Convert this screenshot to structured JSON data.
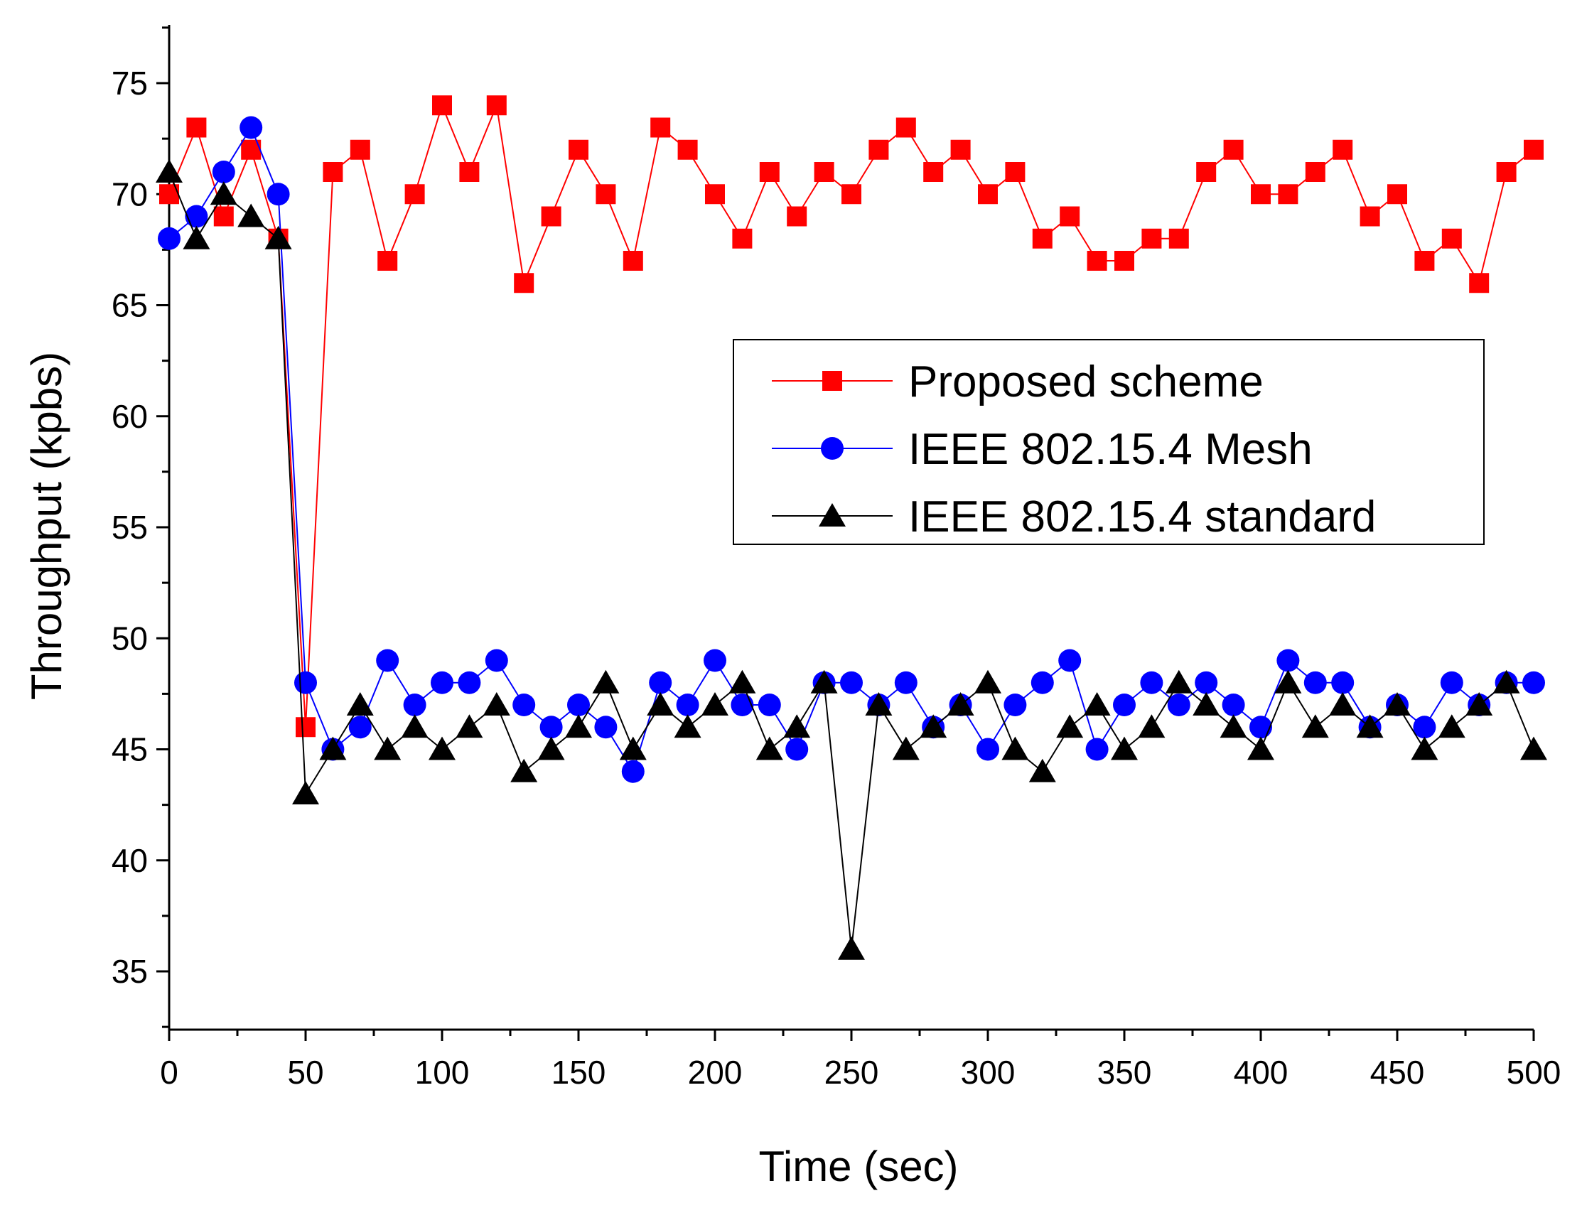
{
  "chart_data": {
    "type": "line",
    "title": "",
    "xlabel": "Time (sec)",
    "ylabel": "Throughput (kpbs)",
    "xlim": [
      0,
      500
    ],
    "ylim": [
      32.5,
      77.5
    ],
    "x_ticks": [
      0,
      50,
      100,
      150,
      200,
      250,
      300,
      350,
      400,
      450,
      500
    ],
    "y_ticks": [
      35,
      40,
      45,
      50,
      55,
      60,
      65,
      70,
      75
    ],
    "grid": false,
    "legend_position": "center-right",
    "x": [
      0,
      10,
      20,
      30,
      40,
      50,
      60,
      70,
      80,
      90,
      100,
      110,
      120,
      130,
      140,
      150,
      160,
      170,
      180,
      190,
      200,
      210,
      220,
      230,
      240,
      250,
      260,
      270,
      280,
      290,
      300,
      310,
      320,
      330,
      340,
      350,
      360,
      370,
      380,
      390,
      400,
      410,
      420,
      430,
      440,
      450,
      460,
      470,
      480,
      490,
      500
    ],
    "series": [
      {
        "name": "Proposed scheme",
        "color": "#ff0000",
        "marker": "square",
        "values": [
          70,
          73,
          69,
          72,
          68,
          46,
          71,
          72,
          67,
          70,
          74,
          71,
          74,
          66,
          69,
          72,
          70,
          67,
          73,
          72,
          70,
          68,
          71,
          69,
          71,
          70,
          72,
          73,
          71,
          72,
          70,
          71,
          68,
          69,
          67,
          67,
          68,
          68,
          71,
          72,
          70,
          70,
          71,
          72,
          69,
          70,
          67,
          68,
          66,
          71,
          72
        ]
      },
      {
        "name": "IEEE 802.15.4 Mesh",
        "color": "#0000ff",
        "marker": "circle",
        "values": [
          68,
          69,
          71,
          73,
          70,
          48,
          45,
          46,
          49,
          47,
          48,
          48,
          49,
          47,
          46,
          47,
          46,
          44,
          48,
          47,
          49,
          47,
          47,
          45,
          48,
          48,
          47,
          48,
          46,
          47,
          45,
          47,
          48,
          49,
          45,
          47,
          48,
          47,
          48,
          47,
          46,
          49,
          48,
          48,
          46,
          47,
          46,
          48,
          47,
          48,
          48
        ]
      },
      {
        "name": "IEEE 802.15.4 standard",
        "color": "#000000",
        "marker": "triangle",
        "values": [
          71,
          68,
          70,
          69,
          68,
          43,
          45,
          47,
          45,
          46,
          45,
          46,
          47,
          44,
          45,
          46,
          48,
          45,
          47,
          46,
          47,
          48,
          45,
          46,
          48,
          36,
          47,
          45,
          46,
          47,
          48,
          45,
          44,
          46,
          47,
          45,
          46,
          48,
          47,
          46,
          45,
          48,
          46,
          47,
          46,
          47,
          45,
          46,
          47,
          48,
          45
        ]
      }
    ]
  }
}
